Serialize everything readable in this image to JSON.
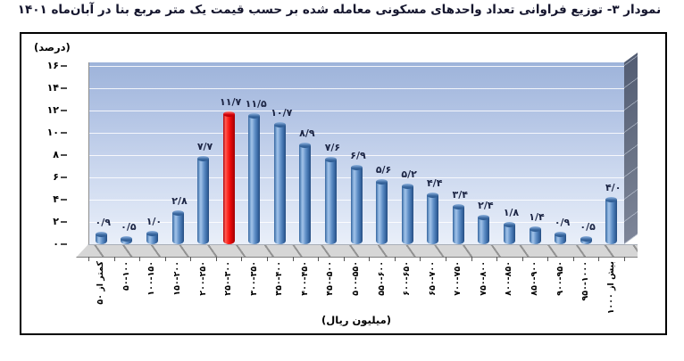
{
  "title": "نمودار ۳- توزیع فراوانی تعداد واحدهای مسکونی معامله شده بر حسب قیمت یک متر مربع بنا در آبان‌ماه ۱۴۰۱",
  "chart_data": {
    "type": "bar",
    "title": "نمودار ۳- توزیع فراوانی تعداد واحدهای مسکونی معامله شده بر حسب قیمت یک متر مربع بنا در آبان‌ماه ۱۴۰۱",
    "ylabel": "(درصد)",
    "xlabel": "(میلیون ریال)",
    "ylim": [
      0,
      16
    ],
    "ytick_step": 2,
    "yticks": [
      0,
      2,
      4,
      6,
      8,
      10,
      12,
      14,
      16
    ],
    "yticks_fa": [
      "۰",
      "۲",
      "۴",
      "۶",
      "۸",
      "۱۰",
      "۱۲",
      "۱۴",
      "۱۶"
    ],
    "grid": true,
    "legend_position": "none",
    "categories": [
      "کمتر از ۵۰",
      "۵۰-۱۰۰",
      "۱۰۰-۱۵۰",
      "۱۵۰-۲۰۰",
      "۲۰۰-۲۵۰",
      "۲۵۰-۳۰۰",
      "۳۰۰-۳۵۰",
      "۳۵۰-۴۰۰",
      "۴۰۰-۴۵۰",
      "۴۵۰-۵۰۰",
      "۵۰۰-۵۵۰",
      "۵۵۰-۶۰۰",
      "۶۰۰-۶۵۰",
      "۶۵۰-۷۰۰",
      "۷۰۰-۷۵۰",
      "۷۵۰-۸۰۰",
      "۸۰۰-۸۵۰",
      "۸۵۰-۹۰۰",
      "۹۰۰-۹۵۰",
      "۹۵۰-۱۰۰۰",
      "بیش از ۱۰۰۰"
    ],
    "values": [
      0.9,
      0.5,
      1.0,
      2.8,
      7.7,
      11.7,
      11.5,
      10.7,
      8.9,
      7.6,
      6.9,
      5.6,
      5.2,
      4.4,
      3.4,
      2.4,
      1.8,
      1.4,
      0.9,
      0.5,
      4.0
    ],
    "value_labels_fa": [
      "۰/۹",
      "۰/۵",
      "۱/۰",
      "۲/۸",
      "۷/۷",
      "۱۱/۷",
      "۱۱/۵",
      "۱۰/۷",
      "۸/۹",
      "۷/۶",
      "۶/۹",
      "۵/۶",
      "۵/۲",
      "۴/۴",
      "۳/۴",
      "۲/۴",
      "۱/۸",
      "۱/۴",
      "۰/۹",
      "۰/۵",
      "۴/۰"
    ],
    "highlight_index": 5,
    "bar_color": "#4f81bd",
    "highlight_color": "#ec0a0a",
    "bar_style": "3d-cylinder"
  }
}
